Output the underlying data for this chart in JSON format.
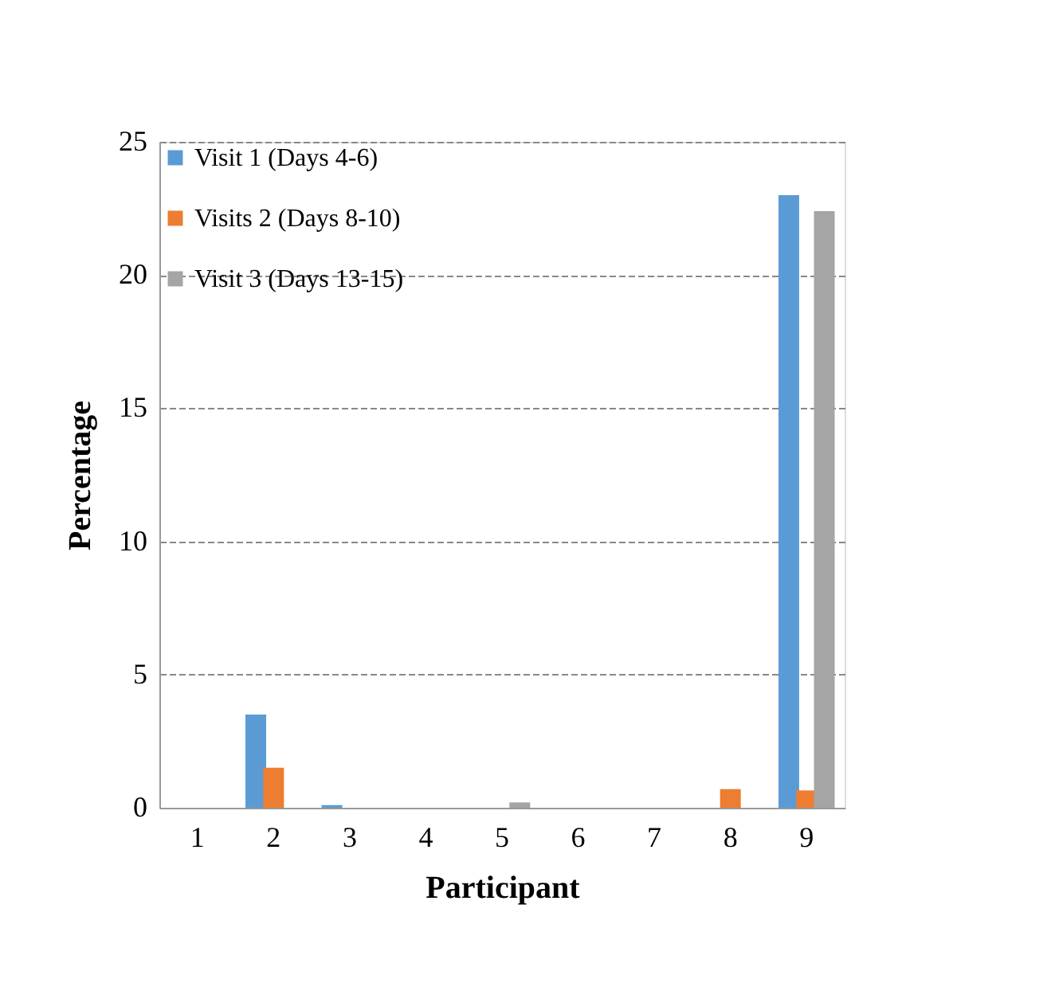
{
  "chart_data": {
    "type": "bar",
    "xlabel": "Participant",
    "ylabel": "Percentage",
    "categories": [
      "1",
      "2",
      "3",
      "4",
      "5",
      "6",
      "7",
      "8",
      "9"
    ],
    "series": [
      {
        "name": "Visit 1 (Days 4-6)",
        "color": "#5b9bd5",
        "values": [
          0,
          3.5,
          0.1,
          0,
          0,
          0,
          0,
          0,
          23
        ]
      },
      {
        "name": "Visits 2 (Days 8-10)",
        "color": "#ed7d31",
        "values": [
          0,
          1.5,
          0,
          0,
          0,
          0,
          0,
          0.7,
          0.65
        ]
      },
      {
        "name": "Visit 3 (Days 13-15)",
        "color": "#a5a5a5",
        "values": [
          0,
          0,
          0,
          0,
          0.2,
          0,
          0,
          0,
          22.4
        ]
      }
    ],
    "ylim": [
      0,
      25
    ],
    "yticks": [
      0,
      5,
      10,
      15,
      20,
      25
    ],
    "grid": "y",
    "legend": "top left"
  }
}
